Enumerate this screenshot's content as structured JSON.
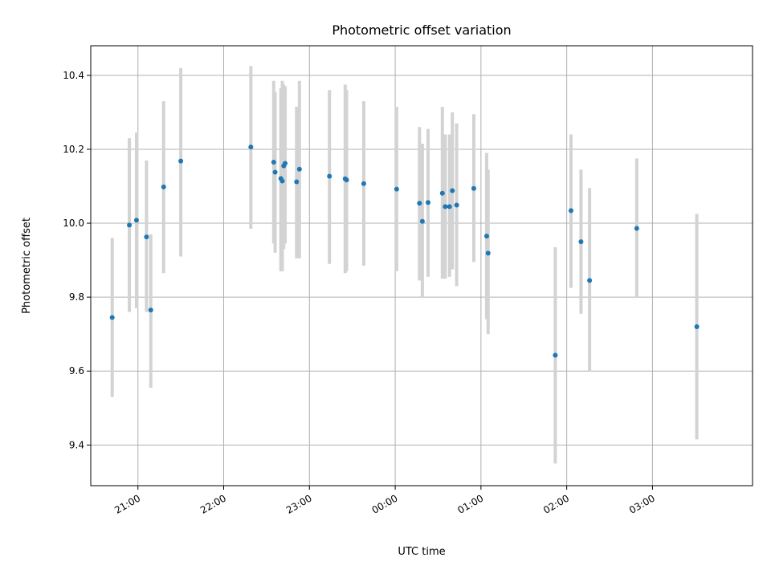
{
  "chart_data": {
    "type": "scatter",
    "title": "Photometric offset variation",
    "xlabel": "UTC time",
    "ylabel": "Photometric offset",
    "x_unit": "UTC time (HH:MM), starting evening before midnight",
    "xlim": [
      "20:27",
      "04:10"
    ],
    "ylim": [
      9.29,
      10.48
    ],
    "grid": true,
    "legend": "none",
    "x_ticks": [
      "21:00",
      "22:00",
      "23:00",
      "00:00",
      "01:00",
      "02:00",
      "03:00"
    ],
    "y_ticks": [
      "9.4",
      "9.6",
      "9.8",
      "10.0",
      "10.2",
      "10.4"
    ],
    "colors": {
      "point": "#1f77b4",
      "errorbar": "#d3d3d3",
      "grid": "#b0b0b0"
    },
    "points": [
      {
        "x": "20:42",
        "y": 9.745,
        "lo": 9.53,
        "hi": 9.96
      },
      {
        "x": "20:54",
        "y": 9.995,
        "lo": 9.76,
        "hi": 10.23
      },
      {
        "x": "20:59",
        "y": 10.008,
        "lo": 9.77,
        "hi": 10.245
      },
      {
        "x": "21:06",
        "y": 9.963,
        "lo": 9.76,
        "hi": 10.17
      },
      {
        "x": "21:09",
        "y": 9.765,
        "lo": 9.555,
        "hi": 9.97
      },
      {
        "x": "21:18",
        "y": 10.098,
        "lo": 9.865,
        "hi": 10.33
      },
      {
        "x": "21:30",
        "y": 10.168,
        "lo": 9.91,
        "hi": 10.42
      },
      {
        "x": "22:19",
        "y": 10.206,
        "lo": 9.985,
        "hi": 10.425
      },
      {
        "x": "22:35",
        "y": 10.165,
        "lo": 9.945,
        "hi": 10.385
      },
      {
        "x": "22:36",
        "y": 10.138,
        "lo": 9.92,
        "hi": 10.355
      },
      {
        "x": "22:40",
        "y": 10.121,
        "lo": 9.87,
        "hi": 10.365
      },
      {
        "x": "22:41",
        "y": 10.114,
        "lo": 9.87,
        "hi": 10.385
      },
      {
        "x": "22:42",
        "y": 10.155,
        "lo": 9.93,
        "hi": 10.375
      },
      {
        "x": "22:43",
        "y": 10.162,
        "lo": 9.945,
        "hi": 10.37
      },
      {
        "x": "22:51",
        "y": 10.112,
        "lo": 9.905,
        "hi": 10.315
      },
      {
        "x": "22:53",
        "y": 10.146,
        "lo": 9.905,
        "hi": 10.385
      },
      {
        "x": "23:14",
        "y": 10.127,
        "lo": 9.89,
        "hi": 10.36
      },
      {
        "x": "23:25",
        "y": 10.12,
        "lo": 9.865,
        "hi": 10.375
      },
      {
        "x": "23:26",
        "y": 10.117,
        "lo": 9.87,
        "hi": 10.36
      },
      {
        "x": "23:38",
        "y": 10.107,
        "lo": 9.885,
        "hi": 10.33
      },
      {
        "x": "24:01",
        "y": 10.092,
        "lo": 9.87,
        "hi": 10.315
      },
      {
        "x": "24:17",
        "y": 10.054,
        "lo": 9.845,
        "hi": 10.26
      },
      {
        "x": "24:19",
        "y": 10.005,
        "lo": 9.8,
        "hi": 10.215
      },
      {
        "x": "24:23",
        "y": 10.056,
        "lo": 9.855,
        "hi": 10.255
      },
      {
        "x": "24:33",
        "y": 10.081,
        "lo": 9.85,
        "hi": 10.315
      },
      {
        "x": "24:35",
        "y": 10.045,
        "lo": 9.85,
        "hi": 10.24
      },
      {
        "x": "24:38",
        "y": 10.045,
        "lo": 9.855,
        "hi": 10.24
      },
      {
        "x": "24:40",
        "y": 10.088,
        "lo": 9.875,
        "hi": 10.3
      },
      {
        "x": "24:43",
        "y": 10.049,
        "lo": 9.83,
        "hi": 10.27
      },
      {
        "x": "24:55",
        "y": 10.094,
        "lo": 9.895,
        "hi": 10.295
      },
      {
        "x": "25:04",
        "y": 9.965,
        "lo": 9.74,
        "hi": 10.19
      },
      {
        "x": "25:05",
        "y": 9.919,
        "lo": 9.7,
        "hi": 10.145
      },
      {
        "x": "25:52",
        "y": 9.643,
        "lo": 9.35,
        "hi": 9.935
      },
      {
        "x": "26:03",
        "y": 10.034,
        "lo": 9.825,
        "hi": 10.24
      },
      {
        "x": "26:10",
        "y": 9.95,
        "lo": 9.755,
        "hi": 10.145
      },
      {
        "x": "26:16",
        "y": 9.845,
        "lo": 9.6,
        "hi": 10.095
      },
      {
        "x": "26:49",
        "y": 9.986,
        "lo": 9.8,
        "hi": 10.175
      },
      {
        "x": "27:31",
        "y": 9.72,
        "lo": 9.415,
        "hi": 10.025
      }
    ]
  }
}
